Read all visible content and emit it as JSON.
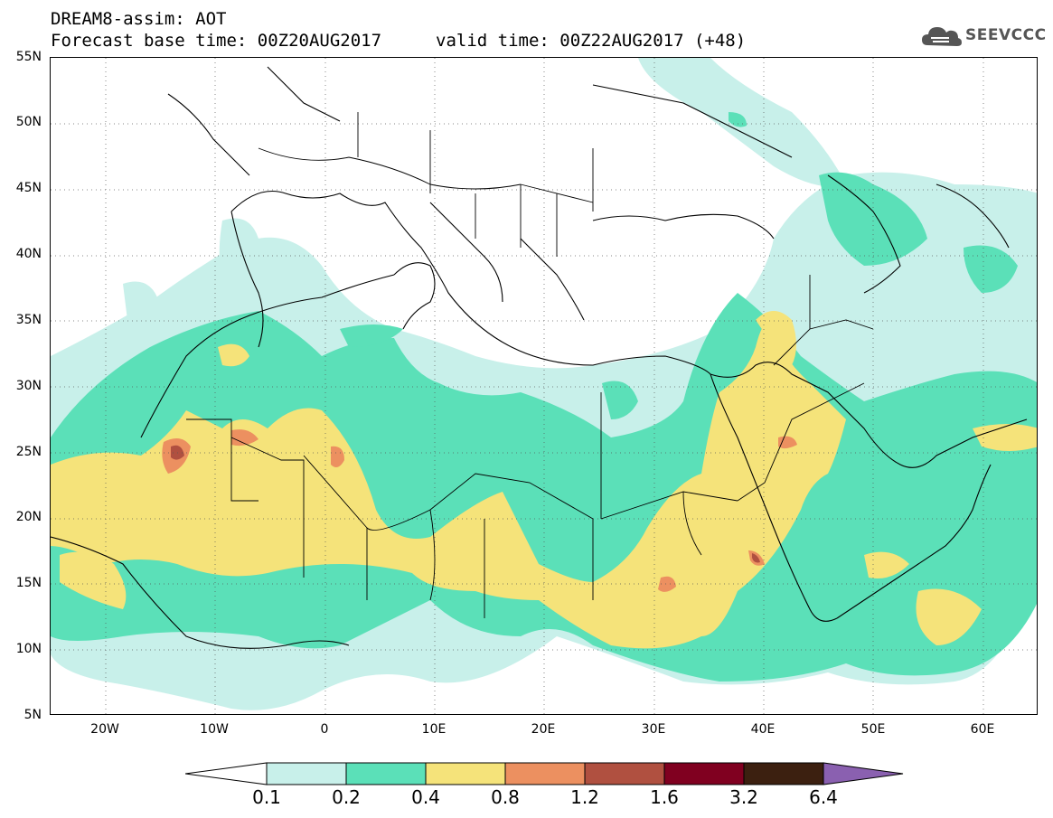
{
  "header": {
    "title": "DREAM8-assim: AOT",
    "base_time": "Forecast base time: 00Z20AUG2017",
    "valid_time": "valid time: 00Z22AUG2017 (+48)"
  },
  "logo": {
    "text": "SEEVCCC",
    "icon": "cloud-logo-icon"
  },
  "map": {
    "variable": "Aerosol Optical Thickness",
    "lat_range": [
      5,
      55
    ],
    "lon_range": [
      -25,
      65
    ],
    "lat_labels": [
      "55N",
      "50N",
      "45N",
      "40N",
      "35N",
      "30N",
      "25N",
      "20N",
      "15N",
      "10N",
      "5N"
    ],
    "lon_labels": [
      "20W",
      "10W",
      "0",
      "10E",
      "20E",
      "30E",
      "40E",
      "50E",
      "60E"
    ],
    "grid": "dotted"
  },
  "legend": {
    "labels": [
      "0.1",
      "0.2",
      "0.4",
      "0.8",
      "1.2",
      "1.6",
      "3.2",
      "6.4"
    ],
    "colors": [
      "#ffffff",
      "#c8f0ea",
      "#5be0b8",
      "#f5e37a",
      "#ec9060",
      "#b05040",
      "#800020",
      "#3c2010",
      "#8a60b0"
    ]
  }
}
